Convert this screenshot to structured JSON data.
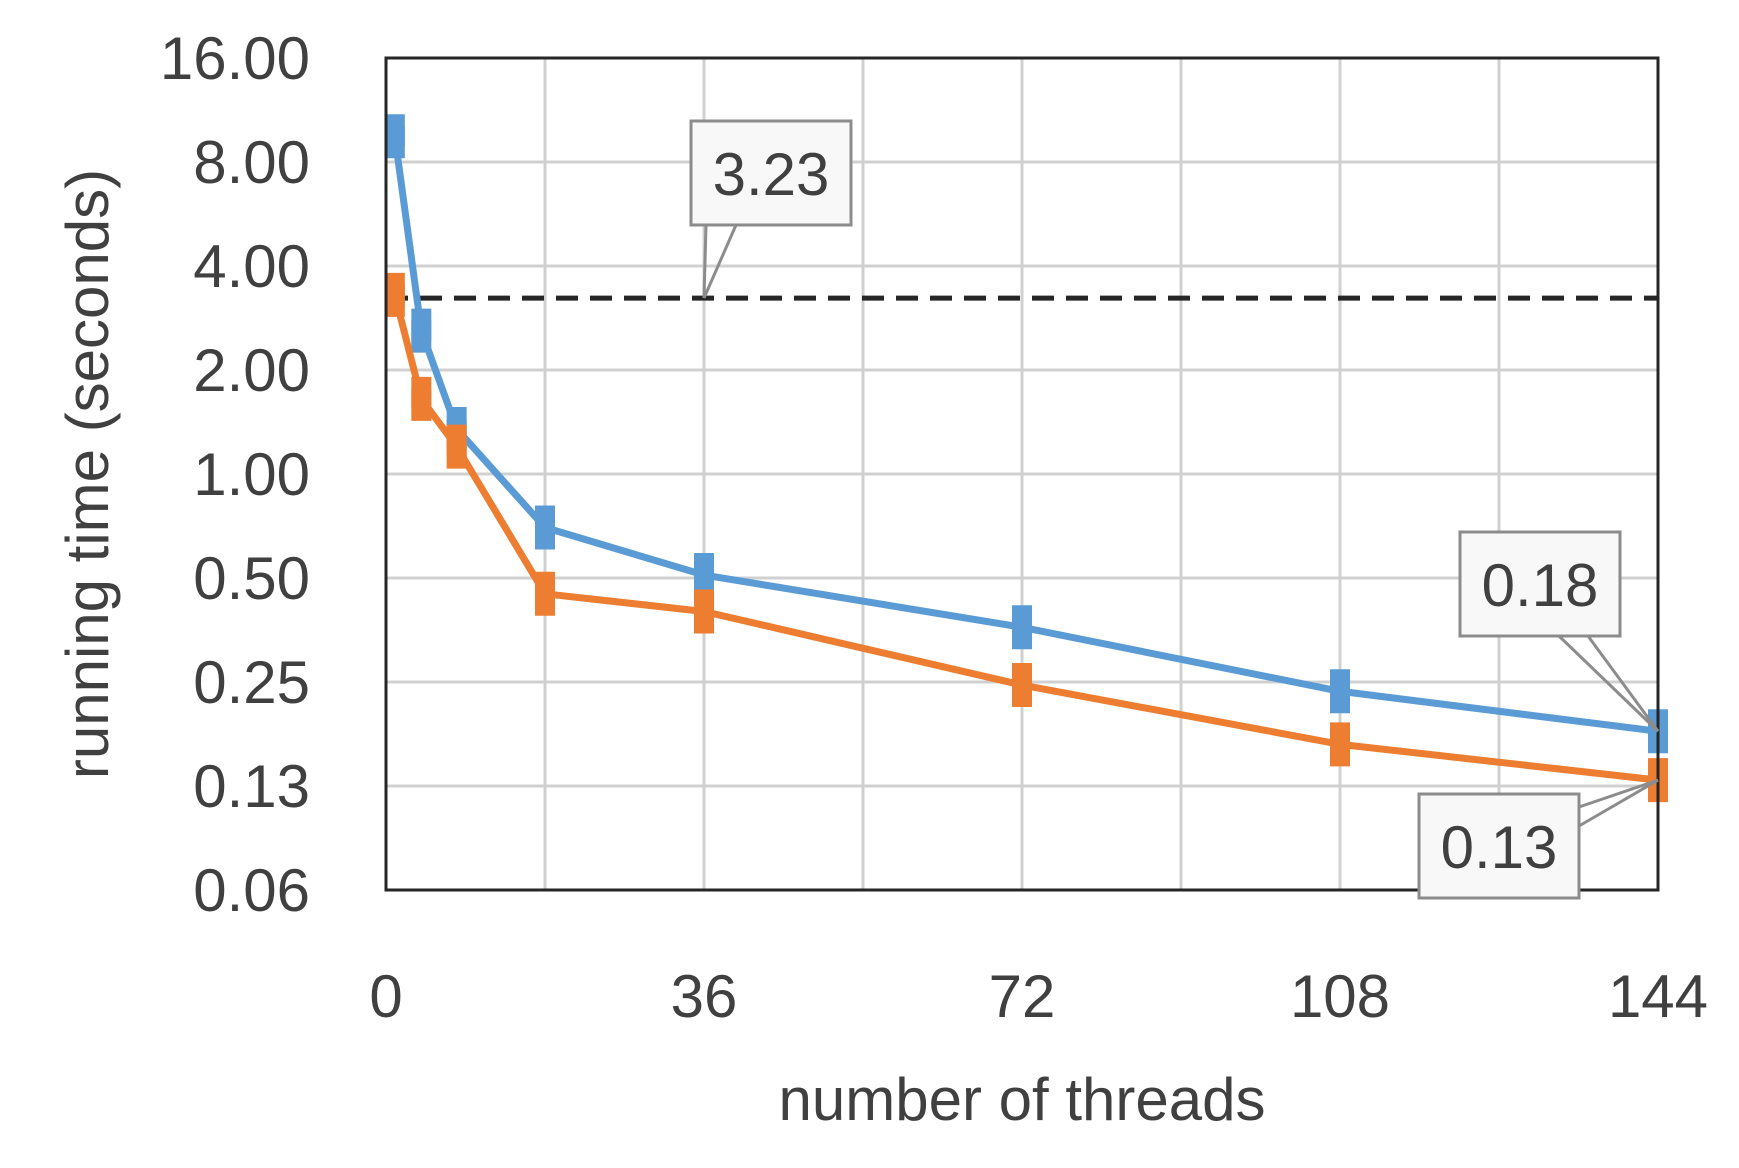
{
  "chart_data": {
    "type": "line",
    "xlabel": "number of threads",
    "ylabel": "running time (seconds)",
    "x_ticks": [
      "0",
      "36",
      "72",
      "108",
      "144"
    ],
    "y_ticks": [
      "0.06",
      "0.13",
      "0.25",
      "0.50",
      "1.00",
      "2.00",
      "4.00",
      "8.00",
      "16.00"
    ],
    "x_grid_values": [
      0,
      18,
      36,
      54,
      72,
      90,
      108,
      126,
      144
    ],
    "xlim": [
      0,
      144
    ],
    "y_scale": "log2",
    "ylim": [
      0.0625,
      16
    ],
    "grid": true,
    "series": [
      {
        "color": "#5b9bd5",
        "points": [
          [
            1,
            9.5
          ],
          [
            4,
            2.6
          ],
          [
            8,
            1.35
          ],
          [
            18,
            0.7
          ],
          [
            36,
            0.51
          ],
          [
            72,
            0.36
          ],
          [
            108,
            0.235
          ],
          [
            144,
            0.18
          ]
        ]
      },
      {
        "color": "#ed7d31",
        "points": [
          [
            1,
            3.3
          ],
          [
            4,
            1.65
          ],
          [
            8,
            1.2
          ],
          [
            18,
            0.45
          ],
          [
            36,
            0.4
          ],
          [
            72,
            0.245
          ],
          [
            108,
            0.165
          ],
          [
            144,
            0.13
          ]
        ]
      }
    ],
    "reference_line": {
      "value": 3.23,
      "color": "#262626",
      "style": "dashed"
    },
    "annotations": [
      {
        "text": "3.23",
        "target": [
          36,
          3.23
        ]
      },
      {
        "text": "0.18",
        "target": [
          144,
          0.18
        ]
      },
      {
        "text": "0.13",
        "target": [
          144,
          0.13
        ]
      }
    ]
  }
}
